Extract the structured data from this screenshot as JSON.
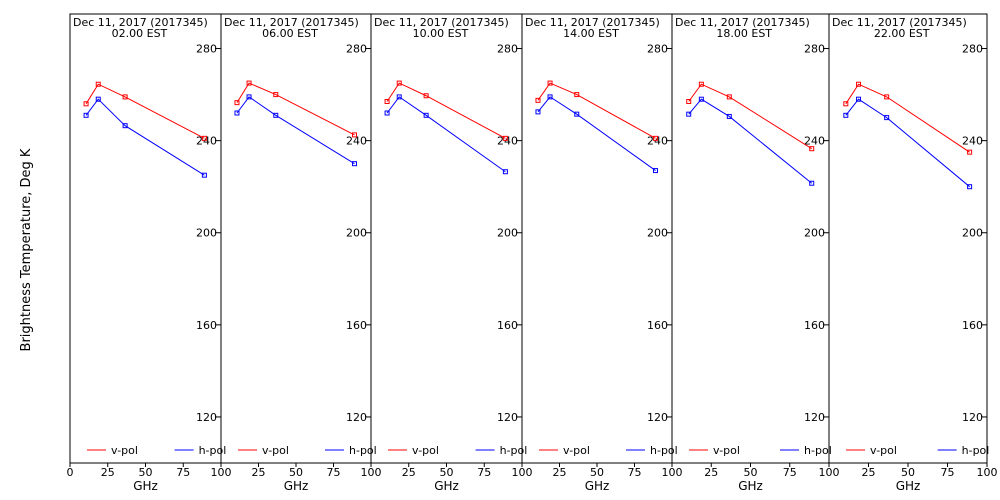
{
  "figure": {
    "ylabel": "Brightness Temperature, Deg K"
  },
  "chart_data": [
    {
      "type": "line",
      "title": "Dec 11, 2017 (2017345)",
      "subtitle": "02.00 EST",
      "xlabel": "GHz",
      "ylabel": "Brightness Temperature, Deg K",
      "xlim": [
        0,
        100
      ],
      "ylim": [
        100,
        295
      ],
      "xticks": [
        0,
        25,
        50,
        75,
        100
      ],
      "xticklabels": [
        "0",
        "25",
        "50",
        "75",
        "100"
      ],
      "yticks": [
        120,
        160,
        200,
        240,
        280
      ],
      "grid": false,
      "legend": "bottom",
      "series": [
        {
          "name": "v-pol",
          "color": "#ff0000",
          "x": [
            10.65,
            18.7,
            36.5,
            89
          ],
          "y": [
            256,
            264.5,
            259,
            241
          ]
        },
        {
          "name": "h-pol",
          "color": "#0000ff",
          "x": [
            10.65,
            18.7,
            36.5,
            89
          ],
          "y": [
            251,
            258,
            246.5,
            225
          ]
        }
      ]
    },
    {
      "type": "line",
      "title": "Dec 11, 2017 (2017345)",
      "subtitle": "06.00 EST",
      "xlabel": "GHz",
      "ylabel": "Brightness Temperature, Deg K",
      "xlim": [
        0,
        100
      ],
      "ylim": [
        100,
        295
      ],
      "xticks": [
        0,
        25,
        50,
        75,
        100
      ],
      "xticklabels": [
        "",
        "25",
        "50",
        "75",
        "100"
      ],
      "yticks": [
        120,
        160,
        200,
        240,
        280
      ],
      "grid": false,
      "legend": "bottom",
      "series": [
        {
          "name": "v-pol",
          "color": "#ff0000",
          "x": [
            10.65,
            18.7,
            36.5,
            89
          ],
          "y": [
            256.5,
            265,
            260,
            242.5
          ]
        },
        {
          "name": "h-pol",
          "color": "#0000ff",
          "x": [
            10.65,
            18.7,
            36.5,
            89
          ],
          "y": [
            252,
            259,
            251,
            230
          ]
        }
      ]
    },
    {
      "type": "line",
      "title": "Dec 11, 2017 (2017345)",
      "subtitle": "10.00 EST",
      "xlabel": "GHz",
      "ylabel": "Brightness Temperature, Deg K",
      "xlim": [
        0,
        100
      ],
      "ylim": [
        100,
        295
      ],
      "xticks": [
        0,
        25,
        50,
        75,
        100
      ],
      "xticklabels": [
        "",
        "25",
        "50",
        "75",
        "100"
      ],
      "yticks": [
        120,
        160,
        200,
        240,
        280
      ],
      "grid": false,
      "legend": "bottom",
      "series": [
        {
          "name": "v-pol",
          "color": "#ff0000",
          "x": [
            10.65,
            18.7,
            36.5,
            89
          ],
          "y": [
            257,
            265,
            259.5,
            241
          ]
        },
        {
          "name": "h-pol",
          "color": "#0000ff",
          "x": [
            10.65,
            18.7,
            36.5,
            89
          ],
          "y": [
            252,
            259,
            251,
            226.5
          ]
        }
      ]
    },
    {
      "type": "line",
      "title": "Dec 11, 2017 (2017345)",
      "subtitle": "14.00 EST",
      "xlabel": "GHz",
      "ylabel": "Brightness Temperature, Deg K",
      "xlim": [
        0,
        100
      ],
      "ylim": [
        100,
        295
      ],
      "xticks": [
        0,
        25,
        50,
        75,
        100
      ],
      "xticklabels": [
        "",
        "25",
        "50",
        "75",
        "100"
      ],
      "yticks": [
        120,
        160,
        200,
        240,
        280
      ],
      "grid": false,
      "legend": "bottom",
      "series": [
        {
          "name": "v-pol",
          "color": "#ff0000",
          "x": [
            10.65,
            18.7,
            36.5,
            89
          ],
          "y": [
            257.5,
            265,
            260,
            241
          ]
        },
        {
          "name": "h-pol",
          "color": "#0000ff",
          "x": [
            10.65,
            18.7,
            36.5,
            89
          ],
          "y": [
            252.5,
            259,
            251.5,
            227
          ]
        }
      ]
    },
    {
      "type": "line",
      "title": "Dec 11, 2017 (2017345)",
      "subtitle": "18.00 EST",
      "xlabel": "GHz",
      "ylabel": "Brightness Temperature, Deg K",
      "xlim": [
        0,
        100
      ],
      "ylim": [
        100,
        295
      ],
      "xticks": [
        0,
        25,
        50,
        75,
        100
      ],
      "xticklabels": [
        "",
        "25",
        "50",
        "75",
        "100"
      ],
      "yticks": [
        120,
        160,
        200,
        240,
        280
      ],
      "grid": false,
      "legend": "bottom",
      "series": [
        {
          "name": "v-pol",
          "color": "#ff0000",
          "x": [
            10.65,
            18.7,
            36.5,
            89
          ],
          "y": [
            257,
            264.5,
            259,
            236.5
          ]
        },
        {
          "name": "h-pol",
          "color": "#0000ff",
          "x": [
            10.65,
            18.7,
            36.5,
            89
          ],
          "y": [
            251.5,
            258,
            250.5,
            221.5
          ]
        }
      ]
    },
    {
      "type": "line",
      "title": "Dec 11, 2017 (2017345)",
      "subtitle": "22.00 EST",
      "xlabel": "GHz",
      "ylabel": "Brightness Temperature, Deg K",
      "xlim": [
        0,
        100
      ],
      "ylim": [
        100,
        295
      ],
      "xticks": [
        0,
        25,
        50,
        75,
        100
      ],
      "xticklabels": [
        "",
        "25",
        "50",
        "75",
        "100"
      ],
      "yticks": [
        120,
        160,
        200,
        240,
        280
      ],
      "grid": false,
      "legend": "bottom",
      "series": [
        {
          "name": "v-pol",
          "color": "#ff0000",
          "x": [
            10.65,
            18.7,
            36.5,
            89
          ],
          "y": [
            256,
            264.5,
            259,
            235
          ]
        },
        {
          "name": "h-pol",
          "color": "#0000ff",
          "x": [
            10.65,
            18.7,
            36.5,
            89
          ],
          "y": [
            251,
            258,
            250,
            220
          ]
        }
      ]
    }
  ]
}
